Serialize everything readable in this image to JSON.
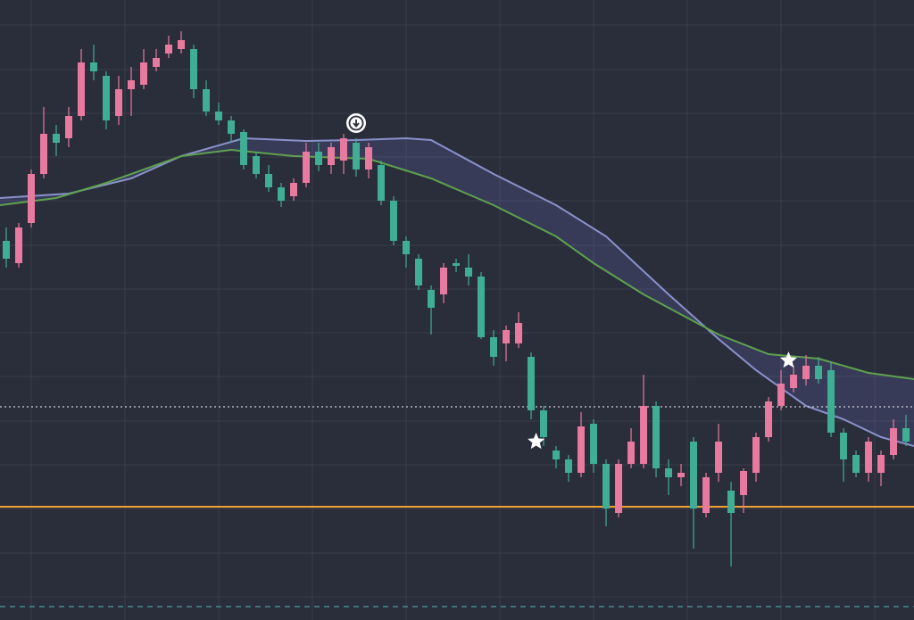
{
  "chart_data": {
    "type": "candlestick",
    "up_color": "#e8799f",
    "down_color": "#3fae94",
    "background": "#2a2d3a",
    "grid": true,
    "grid_color": "#3b3e4b",
    "xlim": [
      -0.5,
      72.64
    ],
    "ylim": [
      0,
      695
    ],
    "xticks": [
      2,
      9.5,
      17,
      24.5,
      32,
      39.5,
      47,
      54.5,
      62,
      69.5
    ],
    "yticks": [
      26,
      75,
      125,
      174,
      223,
      273,
      322,
      371,
      420,
      470,
      519,
      568,
      617,
      667
    ],
    "open": [
      425,
      400,
      445,
      500,
      545,
      540,
      565,
      625,
      610,
      565,
      595,
      600,
      620,
      635,
      640,
      640,
      595,
      570,
      560,
      547,
      520,
      500,
      485,
      475,
      490,
      525,
      510,
      515,
      535,
      505,
      510,
      470,
      425,
      405,
      370,
      365,
      400,
      395,
      385,
      317,
      310,
      310,
      295,
      235,
      190,
      180,
      165,
      220,
      175,
      120,
      175,
      175,
      240,
      170,
      160,
      200,
      120,
      165,
      145,
      140,
      165,
      205,
      240,
      260,
      270,
      285,
      280,
      210,
      185,
      165,
      165,
      185,
      215
    ],
    "high": [
      440,
      445,
      505,
      575,
      555,
      575,
      640,
      645,
      615,
      610,
      620,
      640,
      640,
      655,
      660,
      645,
      605,
      580,
      565,
      550,
      525,
      510,
      490,
      495,
      535,
      535,
      535,
      545,
      540,
      535,
      515,
      475,
      430,
      410,
      375,
      400,
      405,
      410,
      390,
      325,
      330,
      345,
      300,
      240,
      195,
      185,
      233,
      225,
      180,
      180,
      215,
      275,
      245,
      180,
      175,
      205,
      165,
      220,
      155,
      170,
      210,
      250,
      280,
      285,
      297,
      295,
      290,
      215,
      190,
      205,
      190,
      225,
      230
    ],
    "low": [
      395,
      395,
      440,
      495,
      520,
      530,
      560,
      605,
      550,
      555,
      565,
      595,
      615,
      630,
      635,
      585,
      565,
      555,
      535,
      505,
      495,
      480,
      463,
      470,
      485,
      503,
      500,
      500,
      497,
      495,
      465,
      420,
      395,
      370,
      320,
      355,
      390,
      375,
      315,
      285,
      290,
      305,
      225,
      195,
      170,
      155,
      160,
      165,
      105,
      115,
      170,
      170,
      160,
      140,
      150,
      80,
      115,
      155,
      60,
      120,
      155,
      200,
      235,
      255,
      263,
      265,
      205,
      155,
      160,
      155,
      150,
      180,
      195
    ],
    "close": [
      405,
      440,
      500,
      545,
      535,
      565,
      625,
      615,
      560,
      595,
      605,
      625,
      630,
      645,
      650,
      595,
      570,
      560,
      545,
      510,
      500,
      485,
      470,
      490,
      525,
      510,
      530,
      540,
      505,
      530,
      470,
      425,
      410,
      375,
      350,
      395,
      397,
      385,
      317,
      295,
      325,
      333,
      235,
      205,
      180,
      165,
      217,
      175,
      125,
      175,
      200,
      240,
      170,
      160,
      165,
      125,
      160,
      200,
      120,
      167,
      205,
      245,
      265,
      275,
      285,
      270,
      210,
      180,
      165,
      200,
      185,
      215,
      200
    ],
    "lines": [
      {
        "color": "#8a92cc",
        "x": [
          -0.5,
          5,
          10,
          14,
          19,
          24,
          28,
          32,
          34,
          39,
          44,
          48,
          53,
          57,
          60,
          64,
          67,
          70,
          72.64
        ],
        "values": [
          473,
          478,
          495,
          520,
          540,
          537,
          538,
          540,
          538,
          500,
          465,
          430,
          365,
          315,
          280,
          240,
          225,
          205,
          195
        ]
      },
      {
        "color": "#5fa150",
        "x": [
          -0.5,
          4,
          8,
          14,
          18,
          23,
          29,
          34,
          39,
          44,
          47,
          51,
          57,
          61,
          65,
          69,
          72.64
        ],
        "values": [
          465,
          473,
          490,
          520,
          527,
          520,
          517,
          495,
          465,
          430,
          400,
          365,
          320,
          298,
          293,
          277,
          270
        ]
      }
    ],
    "band_fill": "rgba(110,110,190,0.22)",
    "hlines": [
      {
        "value": 127,
        "color": "#f0a030",
        "style": "solid"
      },
      {
        "value": 239,
        "color": "#d0d0da",
        "style": "dotted"
      },
      {
        "value": 15,
        "color": "#4aa0a0",
        "style": "dashed"
      }
    ],
    "markers": [
      {
        "type": "arrow-down",
        "x": 28,
        "y": 557
      },
      {
        "type": "star",
        "x": 42.4,
        "y": 200
      },
      {
        "type": "star",
        "x": 62.6,
        "y": 291
      }
    ]
  }
}
